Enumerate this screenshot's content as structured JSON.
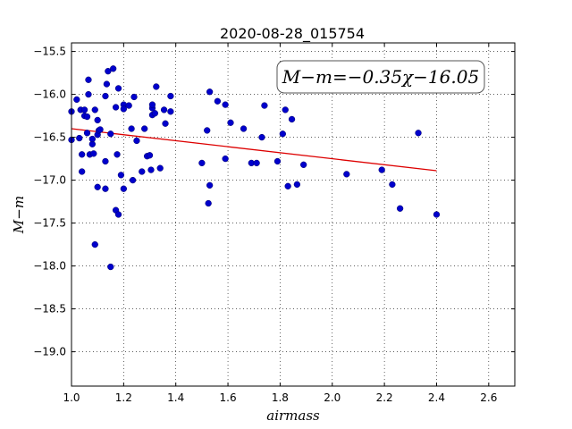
{
  "chart_data": {
    "type": "scatter",
    "title": "2020-08-28_015754",
    "xlabel": "airmass",
    "ylabel": "M−m",
    "xlim": [
      1.0,
      2.7
    ],
    "ylim": [
      -19.4,
      -15.4
    ],
    "x_ticks": [
      "1.0",
      "1.2",
      "1.4",
      "1.6",
      "1.8",
      "2.0",
      "2.2",
      "2.4",
      "2.6"
    ],
    "y_ticks": [
      "−15.5",
      "−16.0",
      "−16.5",
      "−17.0",
      "−17.5",
      "−18.0",
      "−18.5",
      "−19.0"
    ],
    "grid": true,
    "annotation": "M−m=−0.35χ−16.05",
    "annotation_position": "top-right",
    "point_color": "#0000cc",
    "fit_color": "#dd0000",
    "fit": {
      "slope": -0.35,
      "intercept": -16.05,
      "x_range": [
        1.0,
        2.4
      ]
    },
    "points": [
      [
        1.0,
        -16.2
      ],
      [
        1.0,
        -16.53
      ],
      [
        1.02,
        -16.06
      ],
      [
        1.03,
        -16.51
      ],
      [
        1.035,
        -16.18
      ],
      [
        1.04,
        -16.7
      ],
      [
        1.04,
        -16.9
      ],
      [
        1.05,
        -16.25
      ],
      [
        1.05,
        -16.18
      ],
      [
        1.06,
        -16.26
      ],
      [
        1.06,
        -16.45
      ],
      [
        1.065,
        -16.0
      ],
      [
        1.065,
        -15.83
      ],
      [
        1.07,
        -16.7
      ],
      [
        1.08,
        -16.58
      ],
      [
        1.08,
        -16.52
      ],
      [
        1.085,
        -16.69
      ],
      [
        1.09,
        -16.18
      ],
      [
        1.09,
        -17.75
      ],
      [
        1.1,
        -16.47
      ],
      [
        1.1,
        -17.08
      ],
      [
        1.1,
        -16.3
      ],
      [
        1.105,
        -16.42
      ],
      [
        1.11,
        -16.41
      ],
      [
        1.13,
        -16.02
      ],
      [
        1.13,
        -16.78
      ],
      [
        1.13,
        -17.1
      ],
      [
        1.14,
        -15.73
      ],
      [
        1.135,
        -15.88
      ],
      [
        1.15,
        -16.46
      ],
      [
        1.15,
        -18.01
      ],
      [
        1.16,
        -15.7
      ],
      [
        1.17,
        -16.15
      ],
      [
        1.17,
        -17.35
      ],
      [
        1.175,
        -16.7
      ],
      [
        1.18,
        -17.4
      ],
      [
        1.18,
        -15.93
      ],
      [
        1.19,
        -16.94
      ],
      [
        1.2,
        -16.12
      ],
      [
        1.2,
        -16.17
      ],
      [
        1.2,
        -17.1
      ],
      [
        1.22,
        -16.13
      ],
      [
        1.23,
        -16.4
      ],
      [
        1.235,
        -17.0
      ],
      [
        1.24,
        -16.03
      ],
      [
        1.25,
        -16.54
      ],
      [
        1.27,
        -16.9
      ],
      [
        1.28,
        -16.4
      ],
      [
        1.29,
        -16.72
      ],
      [
        1.3,
        -16.71
      ],
      [
        1.305,
        -16.88
      ],
      [
        1.31,
        -16.16
      ],
      [
        1.31,
        -16.12
      ],
      [
        1.31,
        -16.24
      ],
      [
        1.32,
        -16.22
      ],
      [
        1.325,
        -15.91
      ],
      [
        1.34,
        -16.86
      ],
      [
        1.355,
        -16.18
      ],
      [
        1.36,
        -16.34
      ],
      [
        1.38,
        -16.2
      ],
      [
        1.38,
        -16.02
      ],
      [
        1.5,
        -16.8
      ],
      [
        1.52,
        -16.42
      ],
      [
        1.525,
        -17.27
      ],
      [
        1.53,
        -17.06
      ],
      [
        1.53,
        -15.97
      ],
      [
        1.56,
        -16.08
      ],
      [
        1.59,
        -16.75
      ],
      [
        1.59,
        -16.12
      ],
      [
        1.61,
        -16.33
      ],
      [
        1.66,
        -16.4
      ],
      [
        1.69,
        -16.8
      ],
      [
        1.71,
        -16.8
      ],
      [
        1.73,
        -16.5
      ],
      [
        1.74,
        -16.13
      ],
      [
        1.79,
        -16.78
      ],
      [
        1.81,
        -16.46
      ],
      [
        1.82,
        -16.18
      ],
      [
        1.83,
        -17.07
      ],
      [
        1.845,
        -16.29
      ],
      [
        1.865,
        -17.05
      ],
      [
        1.89,
        -16.82
      ],
      [
        2.055,
        -16.93
      ],
      [
        2.19,
        -16.88
      ],
      [
        2.23,
        -17.05
      ],
      [
        2.26,
        -17.33
      ],
      [
        2.33,
        -16.45
      ],
      [
        2.4,
        -17.4
      ]
    ]
  }
}
